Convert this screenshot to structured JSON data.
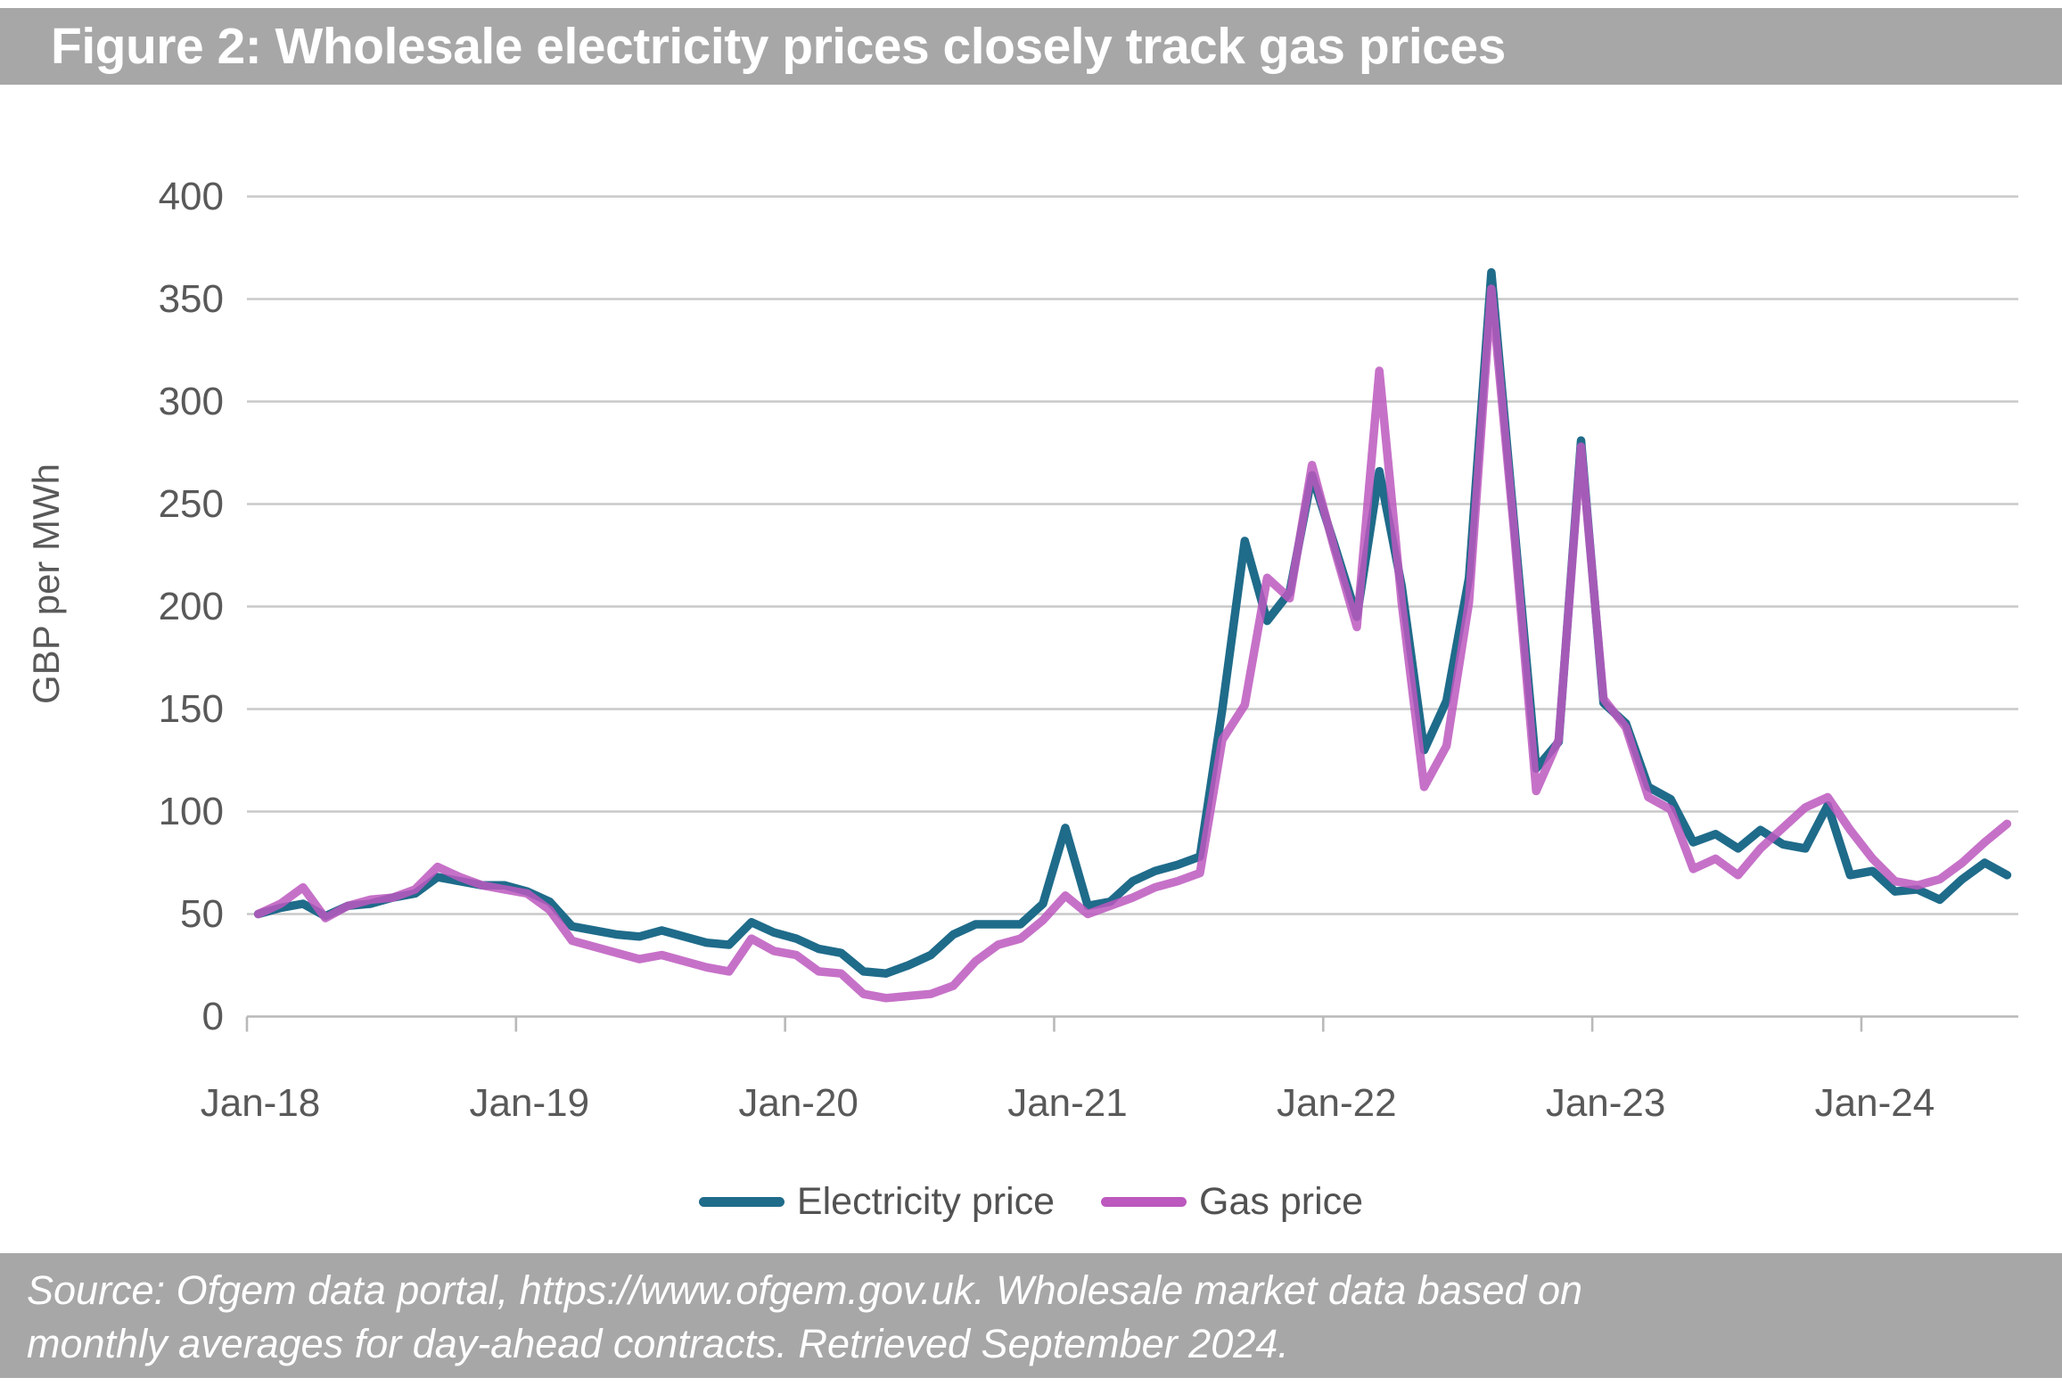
{
  "title": "Figure 2: Wholesale electricity prices closely track gas prices",
  "source_note": {
    "line1": "Source: Ofgem data portal, https://www.ofgem.gov.uk.  Wholesale market data based on",
    "line2": "monthly averages for day-ahead contracts.  Retrieved September 2024."
  },
  "legend": [
    {
      "label": "Electricity price",
      "color": "#1F6B8A"
    },
    {
      "label": "Gas price",
      "color": "#BC58BE"
    }
  ],
  "y_axis": {
    "title": "GBP per MWh",
    "ticks": [
      0,
      50,
      100,
      150,
      200,
      250,
      300,
      350,
      400
    ]
  },
  "x_axis": {
    "tick_labels": [
      "Jan-18",
      "Jan-19",
      "Jan-20",
      "Jan-21",
      "Jan-22",
      "Jan-23",
      "Jan-24"
    ]
  },
  "colors": {
    "band_gray": "#a7a7a7",
    "axis_text": "#595959",
    "gridline": "#c9c9c9",
    "axis_line": "#b9b9b9",
    "electricity": "#1F6B8A",
    "gas": "#BC58BE"
  },
  "chart_data": {
    "type": "line",
    "title": "Figure 2: Wholesale electricity prices closely track gas prices",
    "ylabel": "GBP per MWh",
    "xlabel": "",
    "ylim": [
      0,
      400
    ],
    "grid": "horizontal",
    "legend_position": "bottom",
    "months": [
      "Jan-18",
      "Feb-18",
      "Mar-18",
      "Apr-18",
      "May-18",
      "Jun-18",
      "Jul-18",
      "Aug-18",
      "Sep-18",
      "Oct-18",
      "Nov-18",
      "Dec-18",
      "Jan-19",
      "Feb-19",
      "Mar-19",
      "Apr-19",
      "May-19",
      "Jun-19",
      "Jul-19",
      "Aug-19",
      "Sep-19",
      "Oct-19",
      "Nov-19",
      "Dec-19",
      "Jan-20",
      "Feb-20",
      "Mar-20",
      "Apr-20",
      "May-20",
      "Jun-20",
      "Jul-20",
      "Aug-20",
      "Sep-20",
      "Oct-20",
      "Nov-20",
      "Dec-20",
      "Jan-21",
      "Feb-21",
      "Mar-21",
      "Apr-21",
      "May-21",
      "Jun-21",
      "Jul-21",
      "Aug-21",
      "Sep-21",
      "Oct-21",
      "Nov-21",
      "Dec-21",
      "Jan-22",
      "Feb-22",
      "Mar-22",
      "Apr-22",
      "May-22",
      "Jun-22",
      "Jul-22",
      "Aug-22",
      "Sep-22",
      "Oct-22",
      "Nov-22",
      "Dec-22",
      "Jan-23",
      "Feb-23",
      "Mar-23",
      "Apr-23",
      "May-23",
      "Jun-23",
      "Jul-23",
      "Aug-23",
      "Sep-23",
      "Oct-23",
      "Nov-23",
      "Dec-23",
      "Jan-24",
      "Feb-24",
      "Mar-24",
      "Apr-24",
      "May-24",
      "Jun-24",
      "Jul-24"
    ],
    "series": [
      {
        "name": "Electricity price",
        "color": "#1F6B8A",
        "values": [
          50,
          53,
          55,
          49,
          54,
          55,
          58,
          60,
          68,
          66,
          64,
          64,
          61,
          56,
          44,
          42,
          40,
          39,
          42,
          39,
          36,
          35,
          46,
          41,
          38,
          33,
          31,
          22,
          21,
          25,
          30,
          40,
          45,
          45,
          45,
          55,
          92,
          54,
          56,
          66,
          71,
          74,
          78,
          150,
          232,
          193,
          207,
          264,
          230,
          195,
          266,
          210,
          130,
          154,
          214,
          363,
          242,
          121,
          134,
          281,
          153,
          143,
          112,
          106,
          85,
          89,
          82,
          91,
          84,
          82,
          103,
          69,
          71,
          61,
          62,
          57,
          67,
          75,
          69
        ]
      },
      {
        "name": "Gas price",
        "color": "#BC58BE",
        "values": [
          50,
          55,
          63,
          48,
          54,
          57,
          58,
          62,
          73,
          68,
          64,
          62,
          60,
          52,
          37,
          34,
          31,
          28,
          30,
          27,
          24,
          22,
          38,
          32,
          30,
          22,
          21,
          11,
          9,
          10,
          11,
          15,
          27,
          35,
          38,
          47,
          59,
          50,
          54,
          58,
          63,
          66,
          70,
          135,
          152,
          214,
          204,
          269,
          228,
          190,
          315,
          202,
          112,
          132,
          202,
          355,
          238,
          110,
          135,
          278,
          155,
          141,
          107,
          101,
          72,
          77,
          69,
          82,
          92,
          102,
          107,
          91,
          77,
          66,
          64,
          67,
          75,
          85,
          94
        ]
      }
    ]
  }
}
